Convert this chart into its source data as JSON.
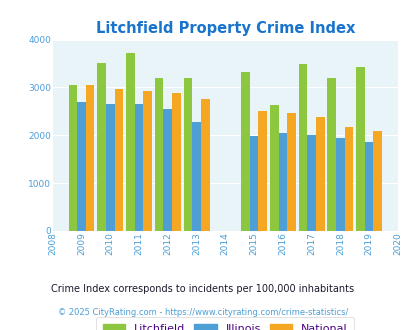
{
  "title": "Litchfield Property Crime Index",
  "years": [
    2009,
    2010,
    2011,
    2012,
    2013,
    2015,
    2016,
    2017,
    2018,
    2019
  ],
  "litchfield": [
    3050,
    3520,
    3730,
    3200,
    3200,
    3320,
    2630,
    3500,
    3200,
    3420
  ],
  "illinois": [
    2700,
    2650,
    2650,
    2560,
    2270,
    1990,
    2050,
    2010,
    1950,
    1850
  ],
  "national": [
    3050,
    2960,
    2920,
    2880,
    2750,
    2510,
    2470,
    2380,
    2180,
    2100
  ],
  "color_litchfield": "#8DC63F",
  "color_illinois": "#4D9FD6",
  "color_national": "#F5A623",
  "xlim": [
    2008,
    2020
  ],
  "ylim": [
    0,
    4000
  ],
  "yticks": [
    0,
    1000,
    2000,
    3000,
    4000
  ],
  "xticks": [
    2008,
    2009,
    2010,
    2011,
    2012,
    2013,
    2014,
    2015,
    2016,
    2017,
    2018,
    2019,
    2020
  ],
  "bg_color": "#E8F4F8",
  "footnote1": "Crime Index corresponds to incidents per 100,000 inhabitants",
  "footnote2": "© 2025 CityRating.com - https://www.cityrating.com/crime-statistics/",
  "bar_width": 0.3,
  "title_color": "#1874CD",
  "tick_color": "#4D9FD6",
  "footnote1_color": "#1a1a2e",
  "footnote2_color": "#4D9FD6",
  "legend_text_color": "#4B0082"
}
